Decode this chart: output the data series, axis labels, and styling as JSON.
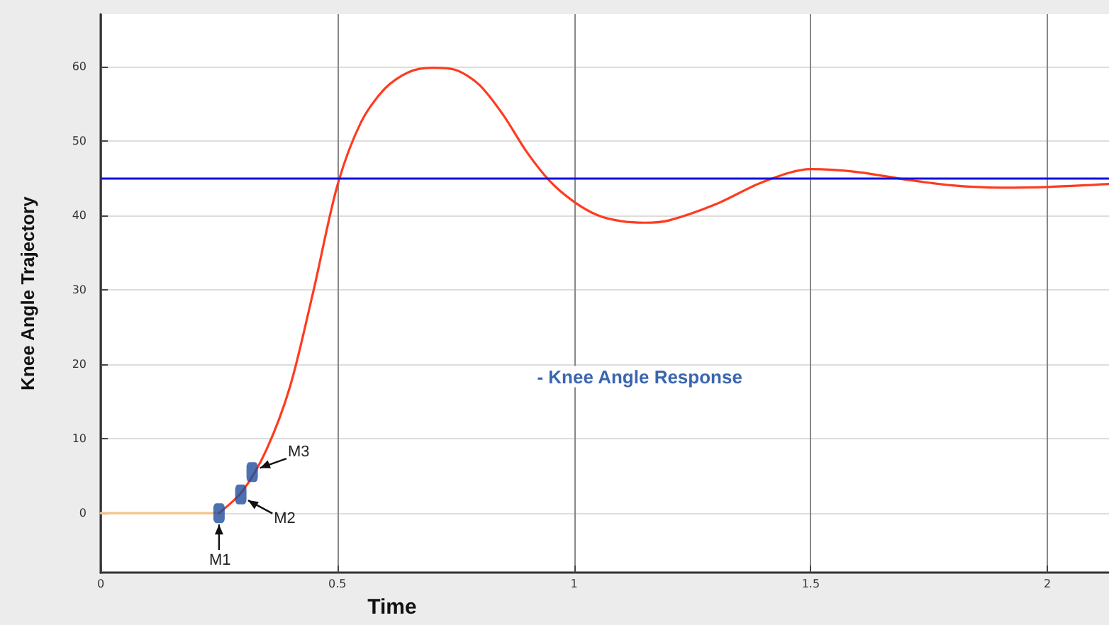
{
  "chart_data": {
    "type": "line",
    "xlabel": "Time",
    "ylabel": "Knee Angle Trajectory",
    "series": [
      {
        "color": "#f5c48a",
        "x": [
          0,
          0.25
        ],
        "values": [
          0,
          0
        ]
      },
      {
        "color": "#ff3b1f",
        "x": [
          0.25,
          0.3,
          0.35,
          0.4,
          0.45,
          0.5,
          0.55,
          0.6,
          0.65,
          0.7,
          0.75,
          0.8,
          0.85,
          0.9,
          0.95,
          1.0,
          1.05,
          1.1,
          1.15,
          1.2,
          1.3,
          1.4,
          1.5,
          1.6,
          1.7,
          1.8,
          1.9,
          2.0,
          2.13
        ],
        "values": [
          0,
          3,
          8.5,
          17,
          30,
          44,
          52.5,
          57,
          59.2,
          59.8,
          59.5,
          57.5,
          53.5,
          48.5,
          44.5,
          41.8,
          40,
          39.2,
          39,
          39.3,
          41.5,
          44.5,
          46.2,
          45.8,
          44.8,
          44,
          43.7,
          43.8,
          44.2
        ]
      },
      {
        "type": "scatter",
        "color": "#1f4e9c",
        "marker": "square",
        "x": [
          0.25,
          0.296,
          0.32
        ],
        "values": [
          0,
          2.5,
          5.5
        ]
      }
    ],
    "ref_lines": [
      {
        "axis": "y",
        "value": 45,
        "color": "#1010e0"
      }
    ],
    "annotations": [
      {
        "text": "M1",
        "x": 0.25,
        "y": 0
      },
      {
        "text": "M2",
        "x": 0.296,
        "y": 2.5
      },
      {
        "text": "M3",
        "x": 0.32,
        "y": 5.5
      },
      "- Knee Angle Response"
    ],
    "xlim": [
      0,
      2.13
    ],
    "ylim": [
      -8,
      67
    ],
    "xticks": [
      0,
      0.5,
      1,
      1.5,
      2
    ],
    "yticks": [
      0,
      10,
      20,
      30,
      40,
      50,
      60
    ],
    "grid": true,
    "marker": "none",
    "line_style": "solid"
  }
}
